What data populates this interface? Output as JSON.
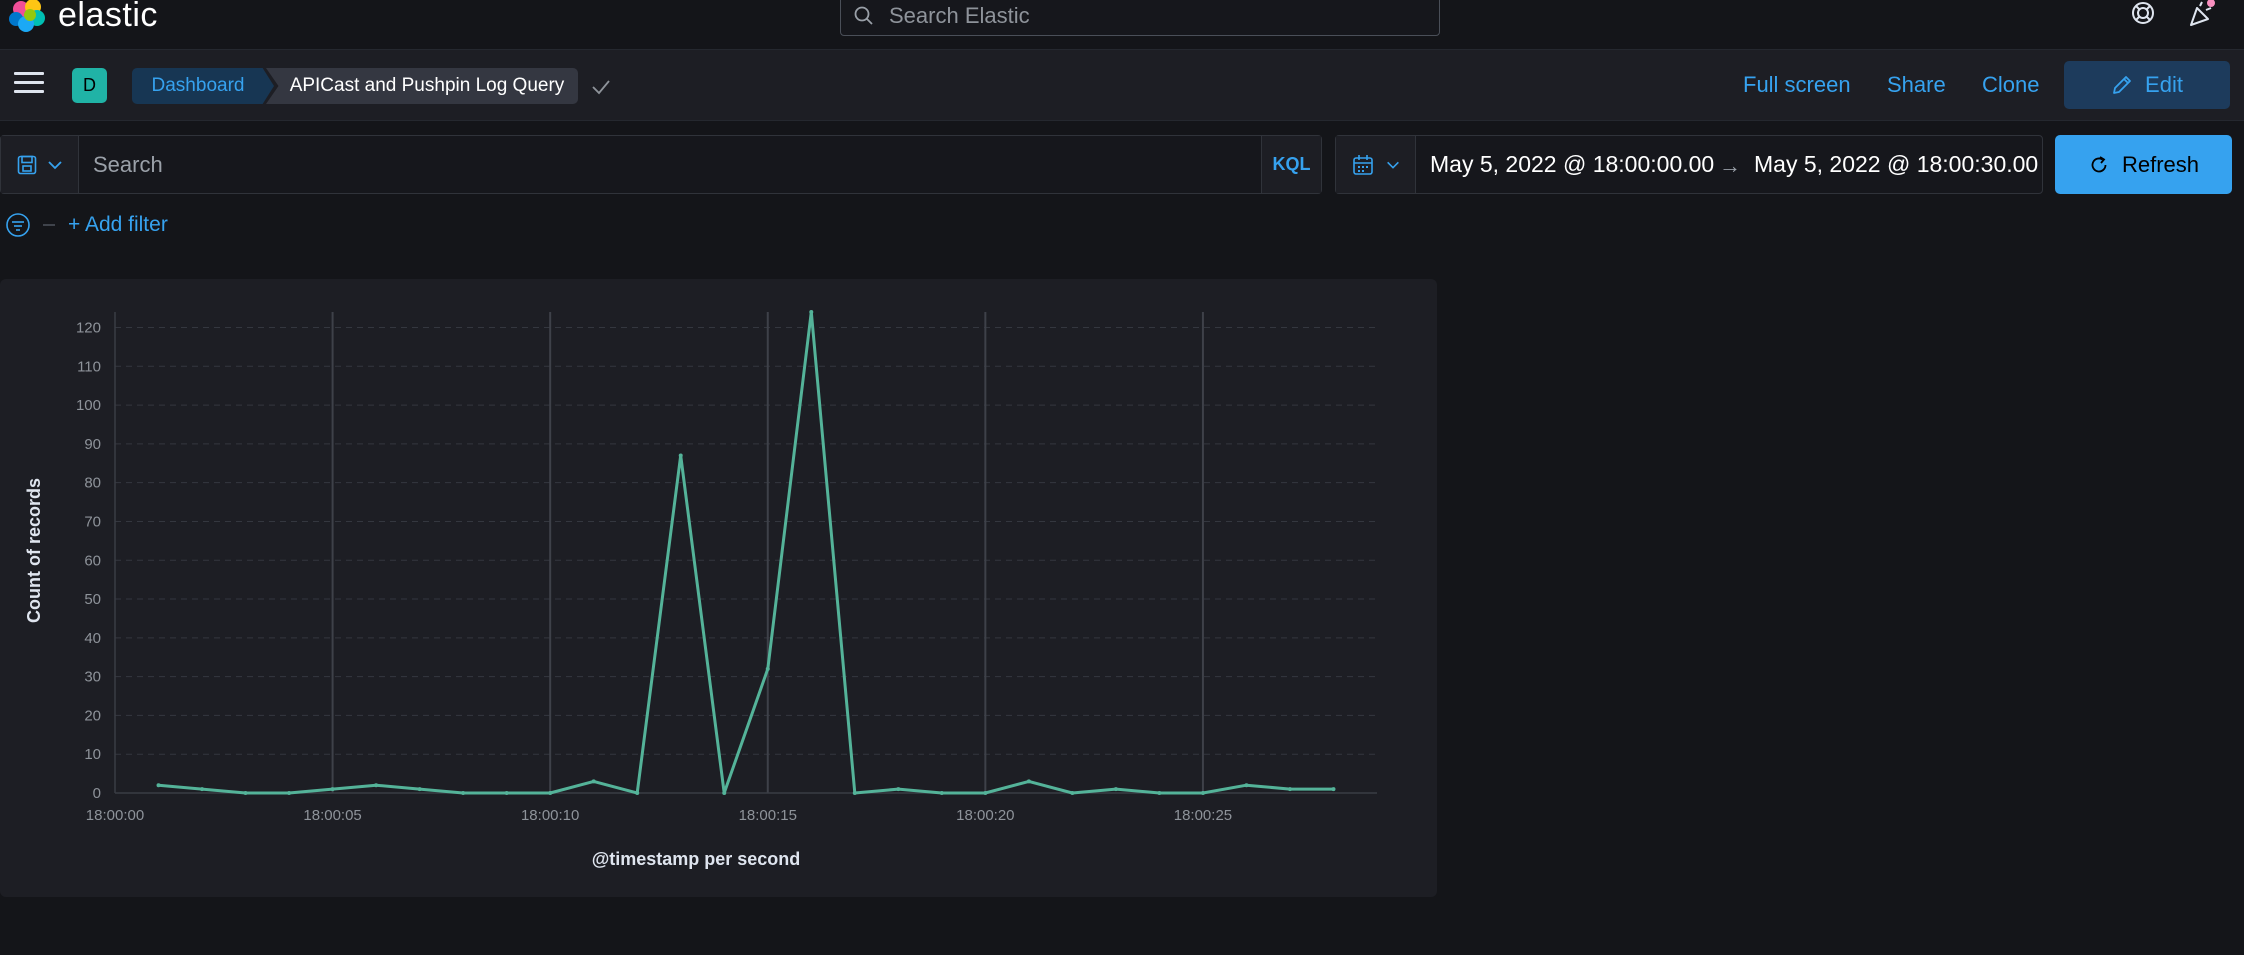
{
  "app": {
    "logo_text": "elastic",
    "search_placeholder": "Search Elastic"
  },
  "nav": {
    "space_initial": "D",
    "breadcrumb_root": "Dashboard",
    "breadcrumb_current": "APICast and Pushpin Log Query",
    "links": {
      "full_screen": "Full screen",
      "share": "Share",
      "clone": "Clone",
      "edit": "Edit"
    }
  },
  "query": {
    "placeholder": "Search",
    "language": "KQL"
  },
  "time": {
    "start": "May 5, 2022 @ 18:00:00.00",
    "arrow": "→",
    "end": "May 5, 2022 @ 18:00:30.00",
    "refresh_label": "Refresh"
  },
  "filters": {
    "add_label": "+ Add filter"
  },
  "colors": {
    "accent": "#36a2ef",
    "line": "#54b399",
    "background": "#141519",
    "panel": "#1d1e24"
  },
  "chart_data": {
    "type": "line",
    "xlabel": "@timestamp per second",
    "ylabel": "Count of records",
    "xlim": [
      0,
      29
    ],
    "ylim": [
      0,
      124
    ],
    "x_tick_values": [
      0,
      5,
      10,
      15,
      20,
      25
    ],
    "x_tick_labels": [
      "18:00:00",
      "18:00:05",
      "18:00:10",
      "18:00:15",
      "18:00:20",
      "18:00:25"
    ],
    "y_ticks": [
      0,
      10,
      20,
      30,
      40,
      50,
      60,
      70,
      80,
      90,
      100,
      110,
      120
    ],
    "grid": true,
    "series": [
      {
        "x": [
          1,
          2,
          3,
          4,
          5,
          6,
          7,
          8,
          9,
          10,
          11,
          12,
          13,
          14,
          15,
          16,
          17,
          18,
          19,
          20,
          21,
          22,
          23,
          24,
          25,
          26,
          27,
          28
        ],
        "values": [
          2,
          1,
          0,
          0,
          1,
          2,
          1,
          0,
          0,
          0,
          3,
          0,
          87,
          0,
          32,
          124,
          0,
          1,
          0,
          0,
          3,
          0,
          1,
          0,
          0,
          2,
          1,
          1
        ]
      }
    ]
  }
}
